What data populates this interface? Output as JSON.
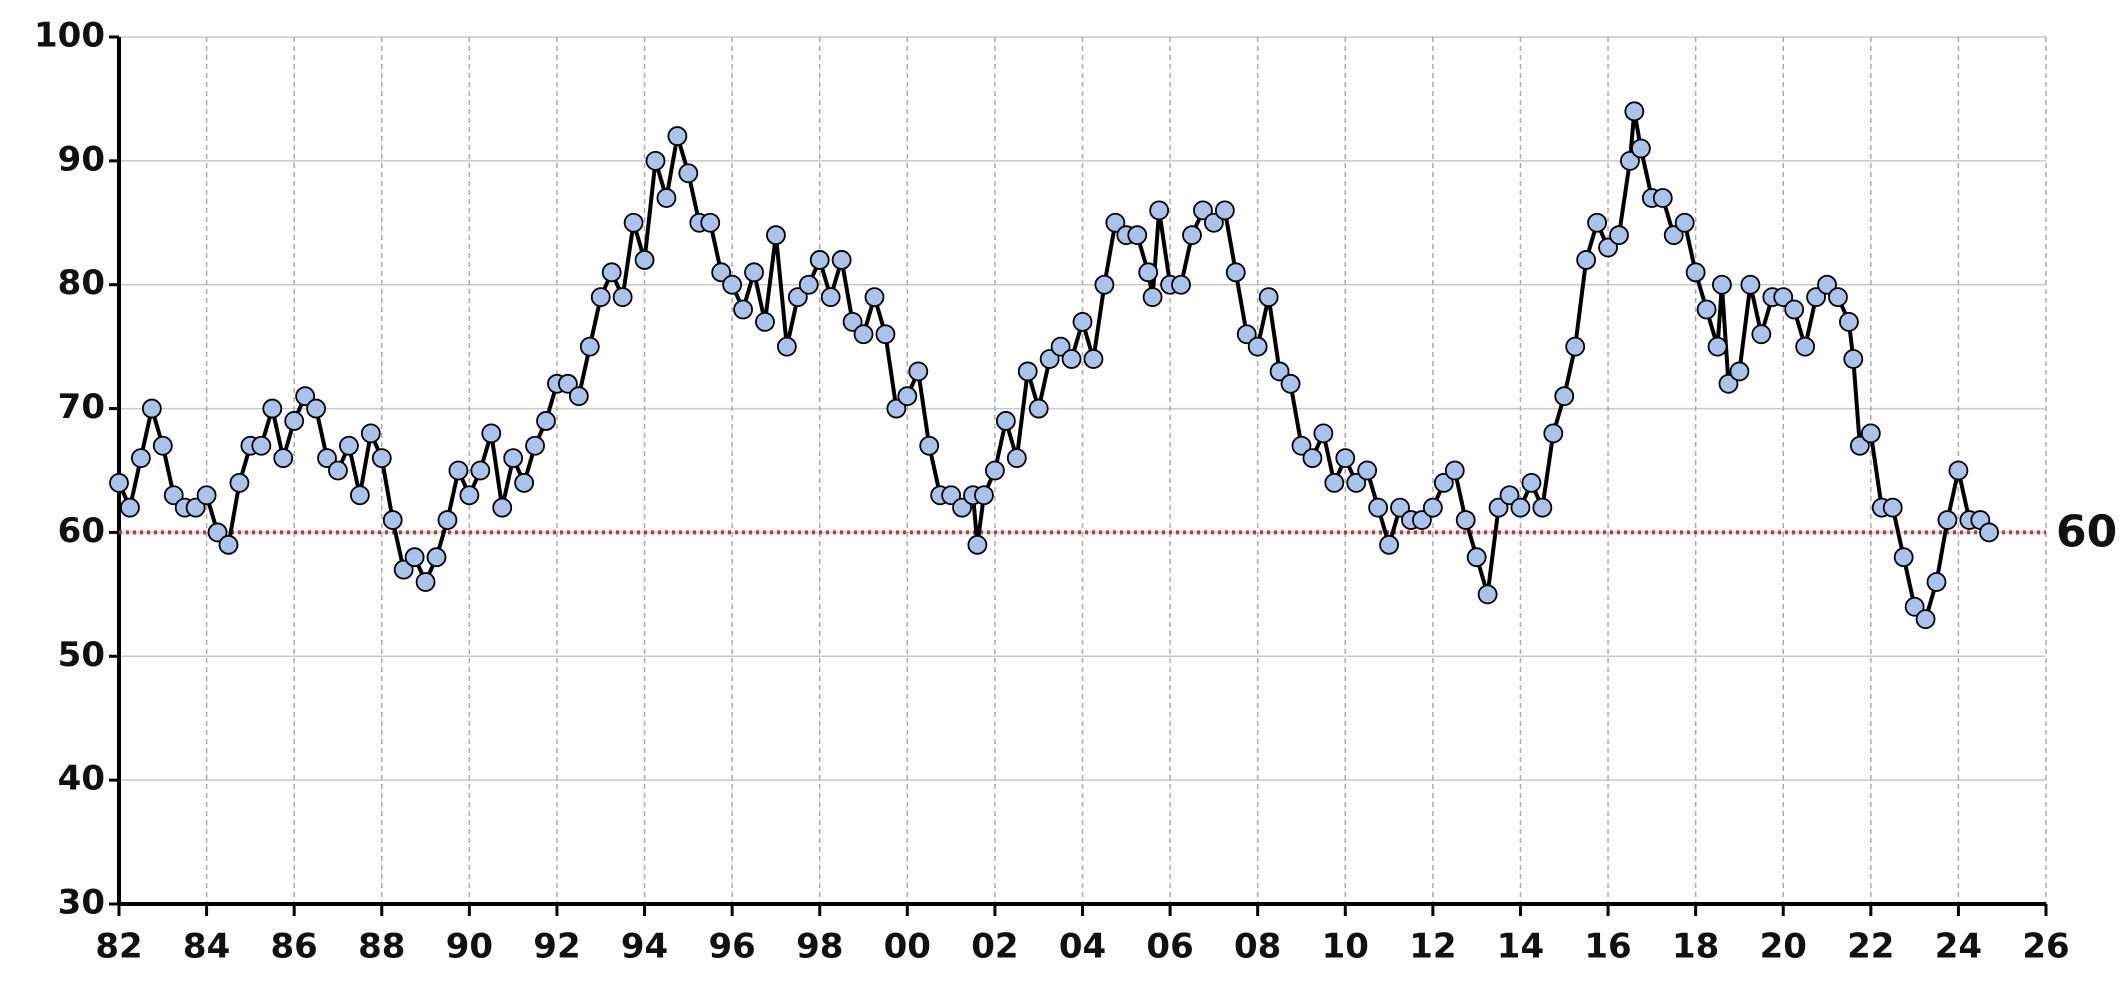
{
  "chart_data": {
    "type": "line",
    "x": [
      1982.0,
      1982.25,
      1982.5,
      1982.75,
      1983.0,
      1983.25,
      1983.5,
      1983.75,
      1984.0,
      1984.25,
      1984.5,
      1984.75,
      1985.0,
      1985.25,
      1985.5,
      1985.75,
      1986.0,
      1986.25,
      1986.5,
      1986.75,
      1987.0,
      1987.25,
      1987.5,
      1987.75,
      1988.0,
      1988.25,
      1988.5,
      1988.75,
      1989.0,
      1989.25,
      1989.5,
      1989.75,
      1990.0,
      1990.25,
      1990.5,
      1990.75,
      1991.0,
      1991.25,
      1991.5,
      1991.75,
      1992.0,
      1992.25,
      1992.5,
      1992.75,
      1993.0,
      1993.25,
      1993.5,
      1993.75,
      1994.0,
      1994.25,
      1994.5,
      1994.75,
      1995.0,
      1995.25,
      1995.5,
      1995.75,
      1996.0,
      1996.25,
      1996.5,
      1996.75,
      1997.0,
      1997.25,
      1997.5,
      1997.75,
      1998.0,
      1998.25,
      1998.5,
      1998.75,
      1999.0,
      1999.25,
      1999.5,
      1999.75,
      2000.0,
      2000.25,
      2000.5,
      2000.75,
      2001.0,
      2001.25,
      2001.5,
      2001.6,
      2001.75,
      2002.0,
      2002.25,
      2002.5,
      2002.75,
      2003.0,
      2003.25,
      2003.5,
      2003.75,
      2004.0,
      2004.25,
      2004.5,
      2004.75,
      2005.0,
      2005.25,
      2005.5,
      2005.6,
      2005.75,
      2006.0,
      2006.25,
      2006.5,
      2006.75,
      2007.0,
      2007.25,
      2007.5,
      2007.75,
      2008.0,
      2008.25,
      2008.5,
      2008.75,
      2009.0,
      2009.25,
      2009.5,
      2009.75,
      2010.0,
      2010.25,
      2010.5,
      2010.75,
      2011.0,
      2011.25,
      2011.5,
      2011.75,
      2012.0,
      2012.25,
      2012.5,
      2012.75,
      2013.0,
      2013.25,
      2013.5,
      2013.75,
      2014.0,
      2014.25,
      2014.5,
      2014.75,
      2015.0,
      2015.25,
      2015.5,
      2015.75,
      2016.0,
      2016.25,
      2016.5,
      2016.6,
      2016.75,
      2017.0,
      2017.25,
      2017.5,
      2017.75,
      2018.0,
      2018.25,
      2018.5,
      2018.6,
      2018.75,
      2019.0,
      2019.25,
      2019.5,
      2019.75,
      2020.0,
      2020.25,
      2020.5,
      2020.75,
      2021.0,
      2021.25,
      2021.5,
      2021.6,
      2021.75,
      2022.0,
      2022.25,
      2022.5,
      2022.75,
      2023.0,
      2023.25,
      2023.5,
      2023.75,
      2024.0,
      2024.25,
      2024.5,
      2024.7
    ],
    "series": [
      {
        "color": "#a9c3ea",
        "values": [
          64,
          62,
          66,
          70,
          67,
          63,
          62,
          62,
          63,
          60,
          59,
          64,
          67,
          67,
          70,
          66,
          69,
          71,
          70,
          66,
          65,
          67,
          63,
          68,
          66,
          61,
          57,
          58,
          56,
          58,
          61,
          65,
          63,
          65,
          68,
          62,
          66,
          64,
          67,
          69,
          72,
          72,
          71,
          75,
          79,
          81,
          79,
          85,
          82,
          90,
          87,
          92,
          89,
          85,
          85,
          81,
          80,
          78,
          81,
          77,
          84,
          75,
          79,
          80,
          82,
          79,
          82,
          77,
          76,
          79,
          76,
          70,
          71,
          73,
          67,
          63,
          63,
          62,
          63,
          59,
          63,
          65,
          69,
          66,
          73,
          70,
          74,
          75,
          74,
          77,
          74,
          80,
          85,
          84,
          84,
          81,
          79,
          86,
          80,
          80,
          84,
          86,
          85,
          86,
          81,
          76,
          75,
          79,
          73,
          72,
          67,
          66,
          68,
          64,
          66,
          64,
          65,
          62,
          59,
          62,
          61,
          61,
          62,
          64,
          65,
          61,
          58,
          55,
          62,
          63,
          62,
          64,
          62,
          68,
          71,
          75,
          82,
          85,
          83,
          84,
          90,
          94,
          91,
          87,
          87,
          84,
          85,
          81,
          78,
          75,
          80,
          72,
          73,
          80,
          76,
          79,
          79,
          78,
          75,
          79,
          80,
          79,
          77,
          74,
          67,
          68,
          62,
          62,
          58,
          54,
          53,
          56,
          61,
          65,
          61,
          61,
          60
        ]
      }
    ],
    "xlim": [
      1982,
      2026
    ],
    "xticks": [
      {
        "value": 1982,
        "label": "82"
      },
      {
        "value": 1984,
        "label": "84"
      },
      {
        "value": 1986,
        "label": "86"
      },
      {
        "value": 1988,
        "label": "88"
      },
      {
        "value": 1990,
        "label": "90"
      },
      {
        "value": 1992,
        "label": "92"
      },
      {
        "value": 1994,
        "label": "94"
      },
      {
        "value": 1996,
        "label": "96"
      },
      {
        "value": 1998,
        "label": "98"
      },
      {
        "value": 2000,
        "label": "00"
      },
      {
        "value": 2002,
        "label": "02"
      },
      {
        "value": 2004,
        "label": "04"
      },
      {
        "value": 2006,
        "label": "06"
      },
      {
        "value": 2008,
        "label": "08"
      },
      {
        "value": 2010,
        "label": "10"
      },
      {
        "value": 2012,
        "label": "12"
      },
      {
        "value": 2014,
        "label": "14"
      },
      {
        "value": 2016,
        "label": "16"
      },
      {
        "value": 2018,
        "label": "18"
      },
      {
        "value": 2020,
        "label": "20"
      },
      {
        "value": 2022,
        "label": "22"
      },
      {
        "value": 2024,
        "label": "24"
      },
      {
        "value": 2026,
        "label": "26"
      }
    ],
    "ylim": [
      30,
      100
    ],
    "yticks": [
      30,
      40,
      50,
      60,
      70,
      80,
      90,
      100
    ],
    "grid": true,
    "reference_line": {
      "value": 60,
      "color": "#c0392b"
    }
  }
}
